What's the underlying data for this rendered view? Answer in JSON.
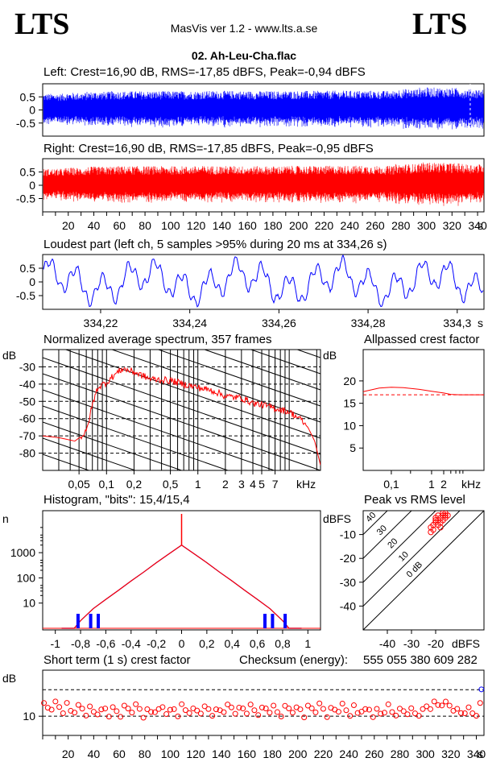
{
  "header": {
    "logo_left": "LTS",
    "logo_right": "LTS",
    "app_title": "MasVis ver 1.2 - www.lts.a.se",
    "file_name": "02. Ah-Leu-Cha.flac"
  },
  "colors": {
    "left_channel": "#0000ff",
    "right_channel": "#ff0000",
    "axis": "#000000",
    "background": "#ffffff"
  },
  "chart_data": [
    {
      "id": "left",
      "type": "area",
      "title": "Left: Crest=16,90 dB, RMS=-17,85 dBFS, Peak=-0,94 dBFS",
      "ylim": [
        -1,
        1
      ],
      "yticks": [
        "0.5",
        "0",
        "-0.5"
      ],
      "amplitude_envelope": [
        0.62,
        0.66,
        0.7,
        0.72,
        0.72,
        0.72,
        0.72,
        0.73,
        0.73,
        0.72,
        0.72,
        0.73,
        0.73,
        0.74,
        0.74,
        0.73,
        0.8,
        0.86,
        0.84,
        0.8
      ],
      "xlim": [
        0,
        345
      ],
      "marker_s": 334.26
    },
    {
      "id": "right",
      "type": "area",
      "title": "Right: Crest=16,90 dB, RMS=-17,85 dBFS, Peak=-0,95 dBFS",
      "ylim": [
        -1,
        1
      ],
      "yticks": [
        "0.5",
        "0",
        "-0.5"
      ],
      "amplitude_envelope": [
        0.62,
        0.66,
        0.7,
        0.72,
        0.72,
        0.72,
        0.72,
        0.73,
        0.73,
        0.72,
        0.72,
        0.73,
        0.73,
        0.74,
        0.74,
        0.73,
        0.8,
        0.86,
        0.84,
        0.8
      ],
      "xlim": [
        0,
        345
      ],
      "xticks": [
        "20",
        "40",
        "60",
        "80",
        "100",
        "120",
        "140",
        "160",
        "180",
        "200",
        "220",
        "240",
        "260",
        "280",
        "300",
        "320",
        "340"
      ],
      "xunit": "s"
    },
    {
      "id": "loudest",
      "type": "line",
      "title": "Loudest part (left  ch, 5 samples >95% during 20 ms at 334,26 s)",
      "ylim": [
        -1,
        1
      ],
      "yticks": [
        "0.5",
        "0",
        "-0.5"
      ],
      "xlim": [
        334.207,
        334.306
      ],
      "xticks": [
        "334,22",
        "334,24",
        "334,26",
        "334,28",
        "334,3"
      ],
      "xunit": "s"
    },
    {
      "id": "spectrum",
      "type": "line",
      "title": "Normalized average spectrum, 357 frames",
      "ylabel": "dB",
      "yticks": [
        "-30",
        "-40",
        "-50",
        "-60",
        "-70",
        "-80"
      ],
      "xticks": [
        "0,05",
        "0,1",
        "0,2",
        "0,5",
        "1",
        "2",
        "3",
        "4",
        "5",
        "7"
      ],
      "xunit": "kHz",
      "xlim": [
        0.02,
        22
      ],
      "ylim": [
        -90,
        -20
      ],
      "x": [
        0.02,
        0.03,
        0.045,
        0.06,
        0.07,
        0.08,
        0.1,
        0.12,
        0.15,
        0.2,
        0.3,
        0.5,
        0.7,
        1,
        1.5,
        2,
        3,
        4,
        5,
        7,
        10,
        13,
        16,
        19,
        22
      ],
      "y": [
        -70,
        -71,
        -73,
        -68,
        -52,
        -42,
        -39,
        -35,
        -31,
        -33,
        -37,
        -38,
        -40,
        -42,
        -44,
        -47,
        -48,
        -51,
        -52,
        -54,
        -56,
        -60,
        -65,
        -73,
        -87
      ]
    },
    {
      "id": "allpassed",
      "type": "line",
      "title": "Allpassed crest factor",
      "ylabel": "dB",
      "yticks": [
        "20",
        "15",
        "10",
        "5"
      ],
      "xticks": [
        "0,1",
        "1",
        "2",
        "kHz"
      ],
      "ylim": [
        0,
        27
      ],
      "x": [
        0.02,
        0.05,
        0.1,
        0.2,
        0.5,
        1,
        2,
        3,
        5,
        10,
        20
      ],
      "y": [
        17.6,
        18.4,
        18.6,
        18.5,
        18.1,
        17.7,
        17.3,
        17.0,
        16.9,
        16.9,
        16.9
      ],
      "reference_db": 16.9
    },
    {
      "id": "histogram",
      "type": "line",
      "title": "Histogram, \"bits\": 15,4/15,4",
      "ylabel": "n",
      "yticks": [
        "1000",
        "100",
        "10"
      ],
      "xticks": [
        "-1",
        "-0,8",
        "-0,6",
        "-0,4",
        "-0,2",
        "0",
        "0,2",
        "0,4",
        "0,6",
        "0,8",
        "1"
      ],
      "xlim": [
        -1.1,
        1.1
      ],
      "x": [
        0,
        0.1,
        0.2,
        0.3,
        0.4,
        0.5,
        0.6,
        0.7,
        0.8,
        0.85,
        0.95
      ],
      "y": [
        2000,
        900,
        400,
        170,
        75,
        32,
        14,
        6,
        2,
        1,
        1
      ]
    },
    {
      "id": "peak_vs_rms",
      "type": "scatter",
      "title": "Peak vs RMS level",
      "ylabel": "dBFS",
      "xlabel": "dBFS",
      "yticks": [
        "-10",
        "-20",
        "-30",
        "-40"
      ],
      "xticks": [
        "-40",
        "-30",
        "-20"
      ],
      "diagonal_labels": [
        "40",
        "30",
        "20",
        "10",
        "0 dB"
      ],
      "xlim": [
        -50,
        0
      ],
      "ylim": [
        -50,
        0
      ],
      "x": [
        -22,
        -21,
        -20,
        -19,
        -18,
        -17,
        -16,
        -21,
        -19,
        -17,
        -18,
        -20,
        -16,
        -15,
        -22,
        -18,
        -17,
        -19,
        -20,
        -16
      ],
      "y": [
        -7,
        -6,
        -5,
        -4,
        -3,
        -2,
        -1,
        -8,
        -6,
        -4,
        -5,
        -3,
        -2,
        -2,
        -9,
        -7,
        -1,
        -2,
        -4,
        -3
      ]
    },
    {
      "id": "short_term_crest",
      "type": "scatter",
      "title": "Short term (1 s) crest factor",
      "checksum_label": "Checksum (energy):",
      "checksum_value": "555 055 380 609 282",
      "ylabel": "dB",
      "yticks": [
        "10"
      ],
      "xticks": [
        "20",
        "40",
        "60",
        "80",
        "100",
        "120",
        "140",
        "160",
        "180",
        "200",
        "220",
        "240",
        "260",
        "280",
        "300",
        "320",
        "340"
      ],
      "xunit": "s",
      "xlim": [
        0,
        346
      ],
      "ylim": [
        5,
        22
      ],
      "reference_lines_db": [
        16.9,
        10
      ]
    }
  ]
}
